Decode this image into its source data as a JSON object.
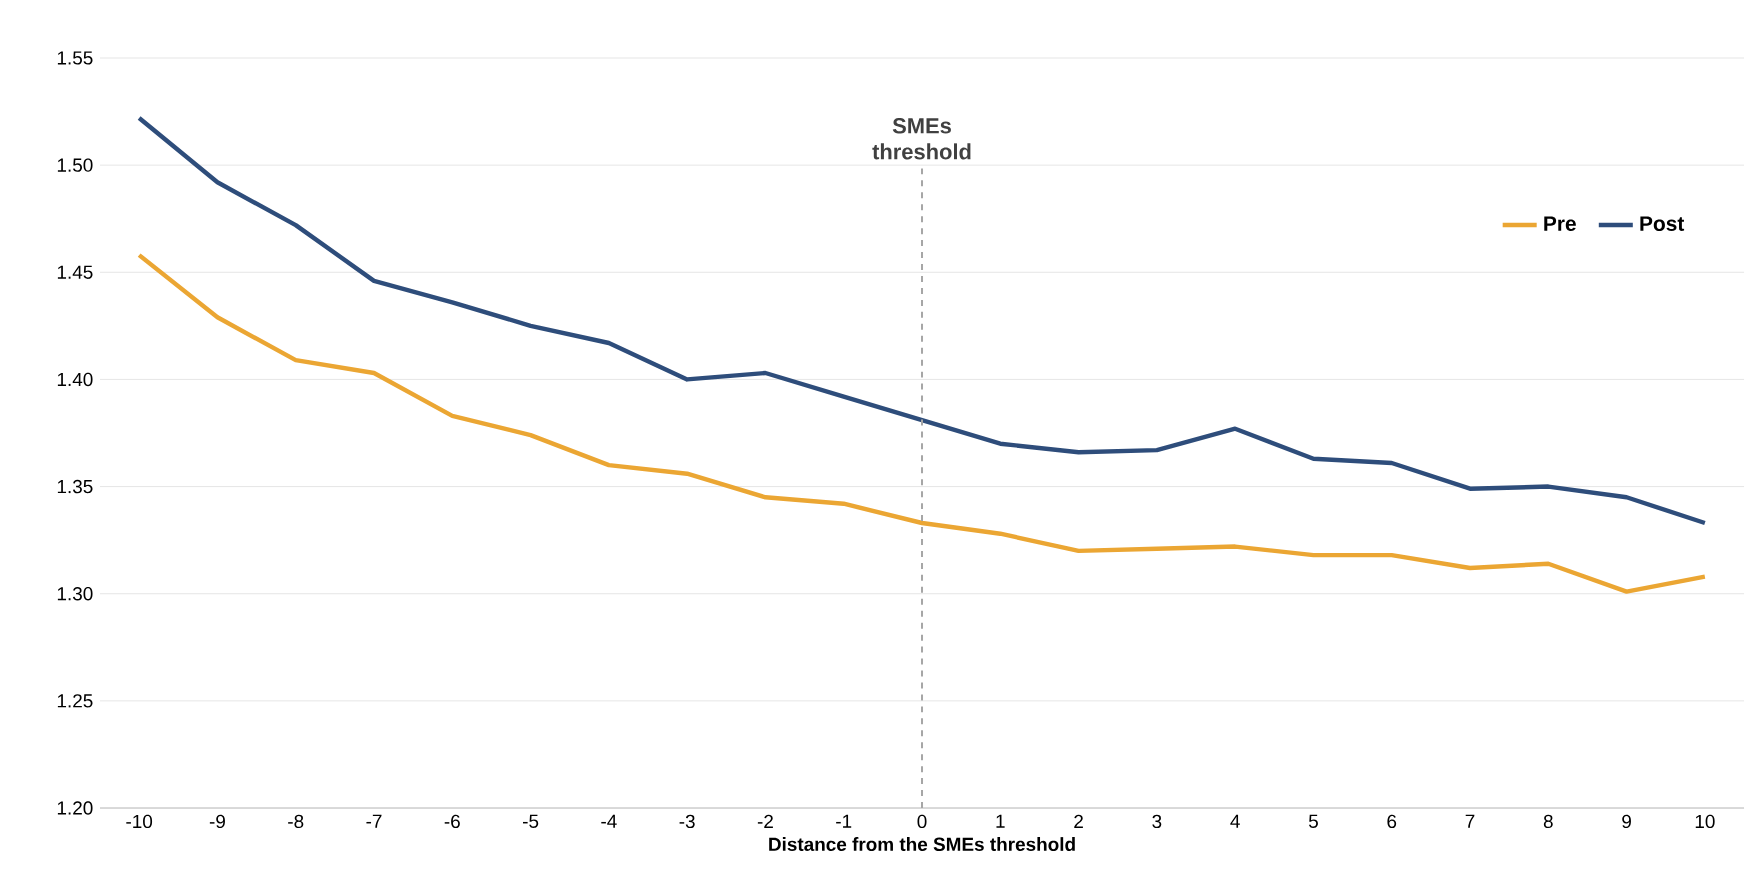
{
  "chart_data": {
    "type": "line",
    "xlabel": "Distance from the SMEs threshold",
    "x": [
      -10,
      -9,
      -8,
      -7,
      -6,
      -5,
      -4,
      -3,
      -2,
      -1,
      0,
      1,
      2,
      3,
      4,
      5,
      6,
      7,
      8,
      9,
      10
    ],
    "series": [
      {
        "name": "Pre",
        "color": "#eba633",
        "values": [
          1.458,
          1.429,
          1.409,
          1.403,
          1.383,
          1.374,
          1.36,
          1.356,
          1.345,
          1.342,
          1.333,
          1.328,
          1.32,
          1.321,
          1.322,
          1.318,
          1.318,
          1.312,
          1.314,
          1.301,
          1.308
        ]
      },
      {
        "name": "Post",
        "color": "#2e4d7b",
        "values": [
          1.522,
          1.492,
          1.472,
          1.446,
          1.436,
          1.425,
          1.417,
          1.4,
          1.403,
          1.392,
          1.381,
          1.37,
          1.366,
          1.367,
          1.377,
          1.363,
          1.361,
          1.349,
          1.35,
          1.345,
          1.333
        ]
      }
    ],
    "xlim": [
      -10.5,
      10.5
    ],
    "xticks": [
      -10,
      -9,
      -8,
      -7,
      -6,
      -5,
      -4,
      -3,
      -2,
      -1,
      0,
      1,
      2,
      3,
      4,
      5,
      6,
      7,
      8,
      9,
      10
    ],
    "ylim": [
      1.2,
      1.55
    ],
    "yticks": [
      {
        "value": 1.2,
        "label": "1.20"
      },
      {
        "value": 1.25,
        "label": "1.25"
      },
      {
        "value": 1.3,
        "label": "1.30"
      },
      {
        "value": 1.35,
        "label": "1.35"
      },
      {
        "value": 1.4,
        "label": "1.40"
      },
      {
        "value": 1.45,
        "label": "1.45"
      },
      {
        "value": 1.5,
        "label": "1.50"
      },
      {
        "value": 1.55,
        "label": "1.55"
      }
    ],
    "grid": "y",
    "legend": "top right",
    "marker": "none",
    "line_style": "solid",
    "ref_lines": [
      {
        "axis": "x",
        "value": 0,
        "label": "SMEs threshold",
        "color": "#a6a6a6",
        "line_style": "dashed"
      }
    ]
  }
}
